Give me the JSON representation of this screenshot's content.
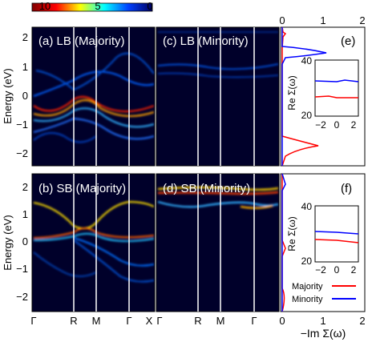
{
  "figure": {
    "colorbar": {
      "tick_labels": [
        "10",
        "5",
        "0"
      ],
      "colors": [
        "#800000",
        "#ff0000",
        "#ffff00",
        "#00ffff",
        "#0040ff",
        "#000060"
      ]
    },
    "y_axis_label": "Energy (eV)",
    "y_ticks": [
      "2",
      "1",
      "0",
      "−1",
      "−2"
    ],
    "k_path_left": [
      "Γ",
      "R",
      "M",
      "Γ",
      "X"
    ],
    "k_path_right": [
      "Γ",
      "R",
      "M",
      "Γ"
    ],
    "panels": {
      "a": "(a) LB (Majority)",
      "b": "(b) SB (Majority)",
      "c": "(c) LB (Minority)",
      "d": "(d) SB (Minority)",
      "e": "(e)",
      "f": "(f)"
    },
    "side_axis": {
      "top_ticks": [
        "0",
        "1",
        "2"
      ],
      "bottom_ticks": [
        "0",
        "1",
        "2"
      ],
      "bottom_label": "−Im Σ(ω)"
    },
    "inset": {
      "ylabel": "Re Σ(ω)",
      "y_ticks": [
        "40",
        "30",
        "20"
      ],
      "x_ticks": [
        "−2",
        "0",
        "2"
      ]
    },
    "legend": [
      {
        "label": "Majority",
        "color": "#ff0000"
      },
      {
        "label": "Minority",
        "color": "#0000ff"
      }
    ]
  }
}
